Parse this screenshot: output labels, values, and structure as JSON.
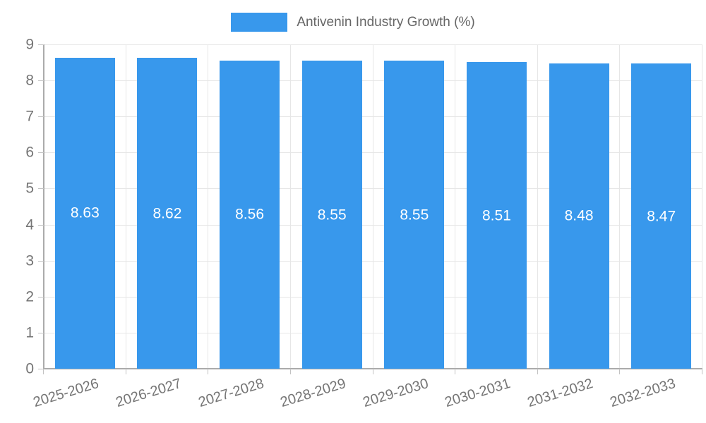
{
  "legend": {
    "label": "Antivenin Industry Growth (%)"
  },
  "chart_data": {
    "type": "bar",
    "title": "Antivenin Industry Growth (%)",
    "categories": [
      "2025-2026",
      "2026-2027",
      "2027-2028",
      "2028-2029",
      "2029-2030",
      "2030-2031",
      "2031-2032",
      "2032-2033"
    ],
    "values": [
      8.63,
      8.62,
      8.56,
      8.55,
      8.55,
      8.51,
      8.48,
      8.47
    ],
    "value_labels": [
      "8.63",
      "8.62",
      "8.56",
      "8.55",
      "8.55",
      "8.51",
      "8.48",
      "8.47"
    ],
    "xlabel": "",
    "ylabel": "",
    "ylim": [
      0,
      9
    ],
    "yticks": [
      0,
      1,
      2,
      3,
      4,
      5,
      6,
      7,
      8,
      9
    ],
    "grid": true,
    "legend_position": "top",
    "colors": {
      "bar": "#3898EC",
      "value_label": "#FFFFFF",
      "axis_text": "#757575",
      "legend_text": "#666666",
      "gridline": "#E6E6E6",
      "axis_line": "#ABABAB",
      "tick": "#C2C2C2",
      "background": "#FFFFFF"
    }
  }
}
